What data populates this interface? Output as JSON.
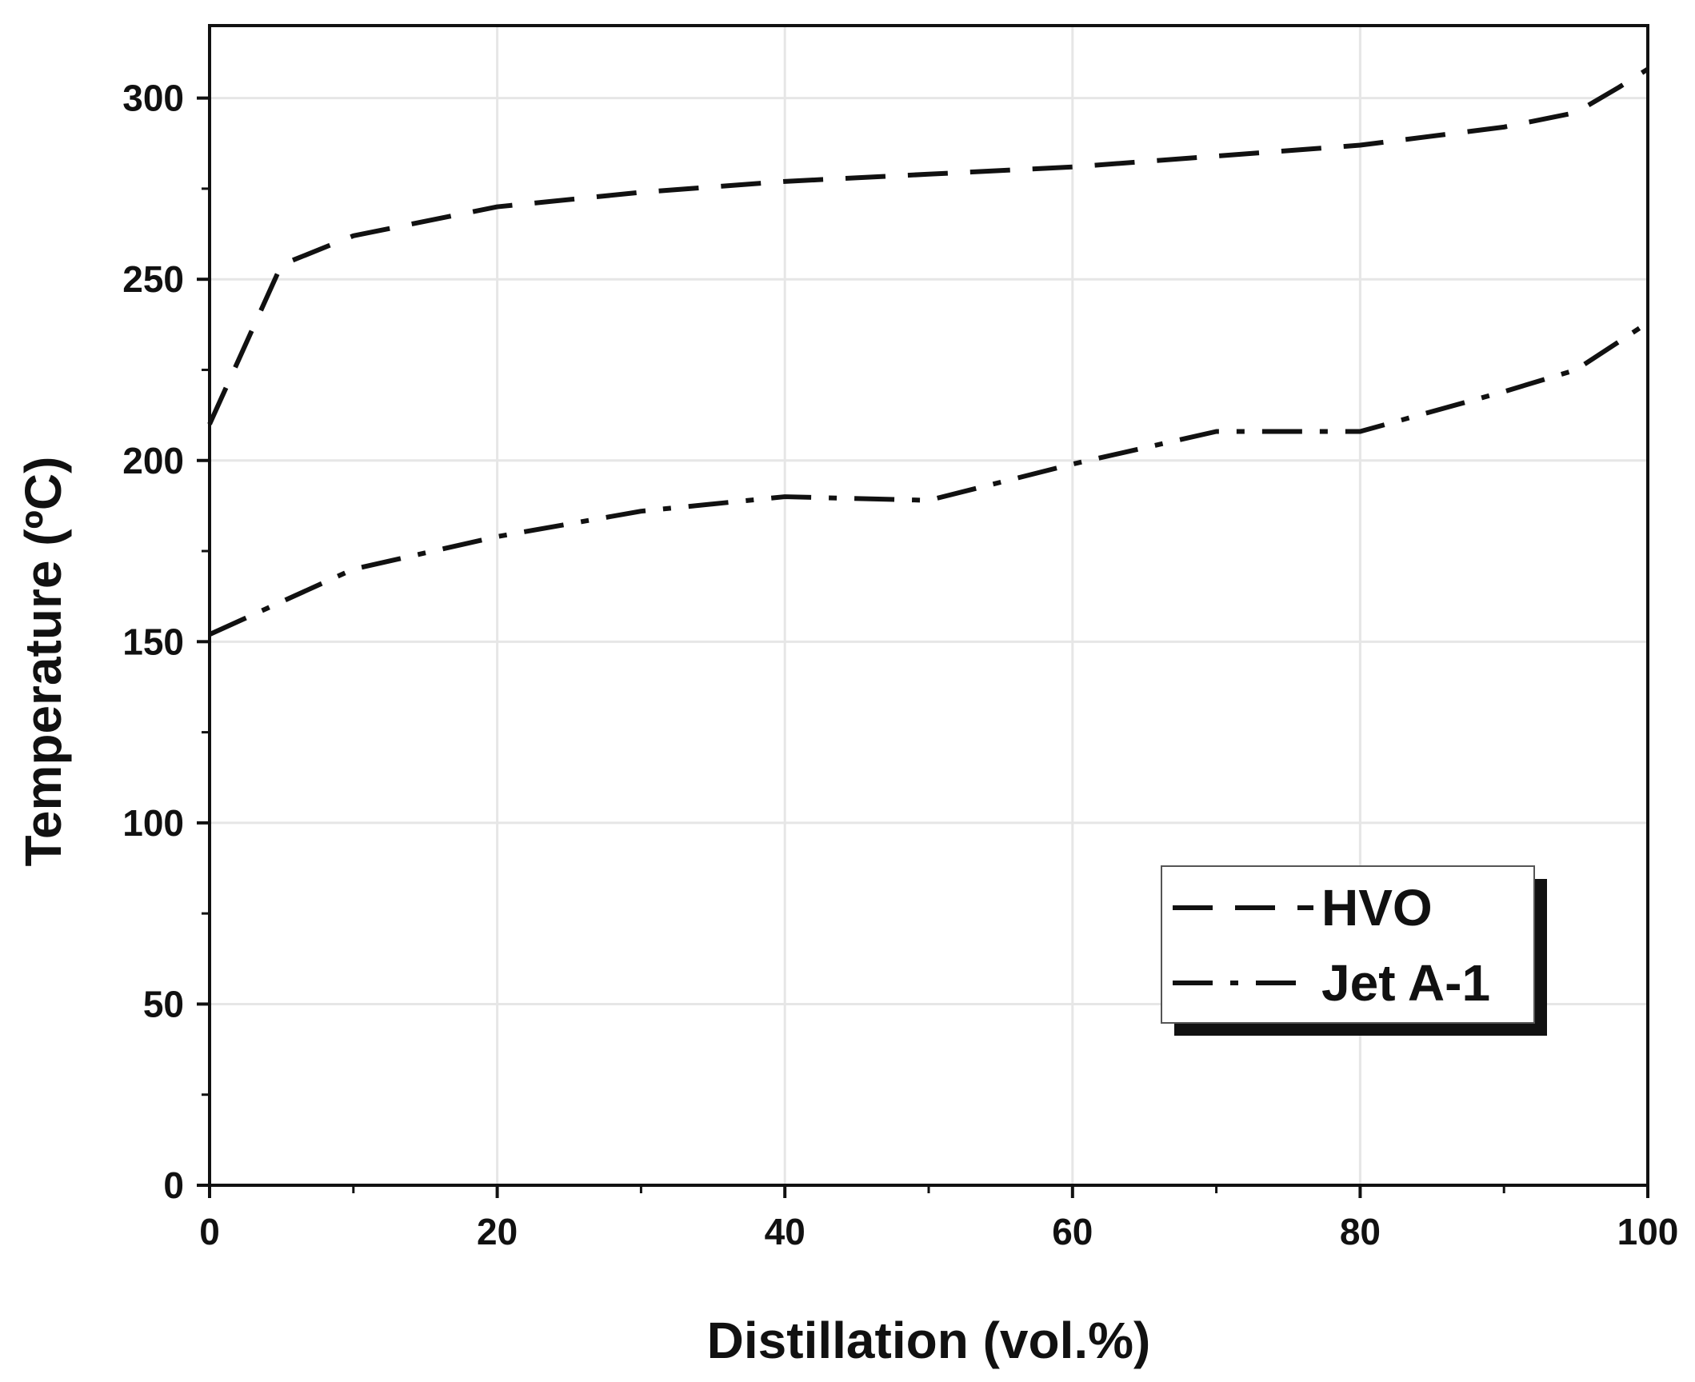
{
  "chart_data": {
    "type": "line",
    "title": "",
    "xlabel": "Distillation (vol.%)",
    "ylabel": "Temperature (ºC)",
    "xlim": [
      0,
      100
    ],
    "ylim": [
      0,
      320
    ],
    "xticks": [
      0,
      20,
      40,
      60,
      80,
      100
    ],
    "yticks": [
      0,
      50,
      100,
      150,
      200,
      250,
      300
    ],
    "x_minor_step": 10,
    "y_minor_step": 25,
    "grid": true,
    "legend_position": "bottom-right",
    "series": [
      {
        "name": "HVO",
        "style": "dashed",
        "x": [
          0,
          5,
          10,
          20,
          30,
          40,
          50,
          60,
          70,
          80,
          90,
          95,
          98,
          100
        ],
        "y": [
          210,
          254,
          262,
          270,
          274,
          277,
          279,
          281,
          284,
          287,
          292,
          296,
          303,
          308
        ]
      },
      {
        "name": "Jet A-1",
        "style": "dash-dot",
        "x": [
          0,
          5,
          10,
          20,
          30,
          40,
          50,
          60,
          70,
          80,
          90,
          95,
          100
        ],
        "y": [
          152,
          161,
          170,
          179,
          186,
          190,
          189,
          199,
          208,
          208,
          219,
          225,
          238
        ]
      }
    ],
    "colors": {
      "line": "#111111",
      "grid": "#e6e6e6",
      "frame": "#111111",
      "legend_shadow": "#111111"
    }
  }
}
